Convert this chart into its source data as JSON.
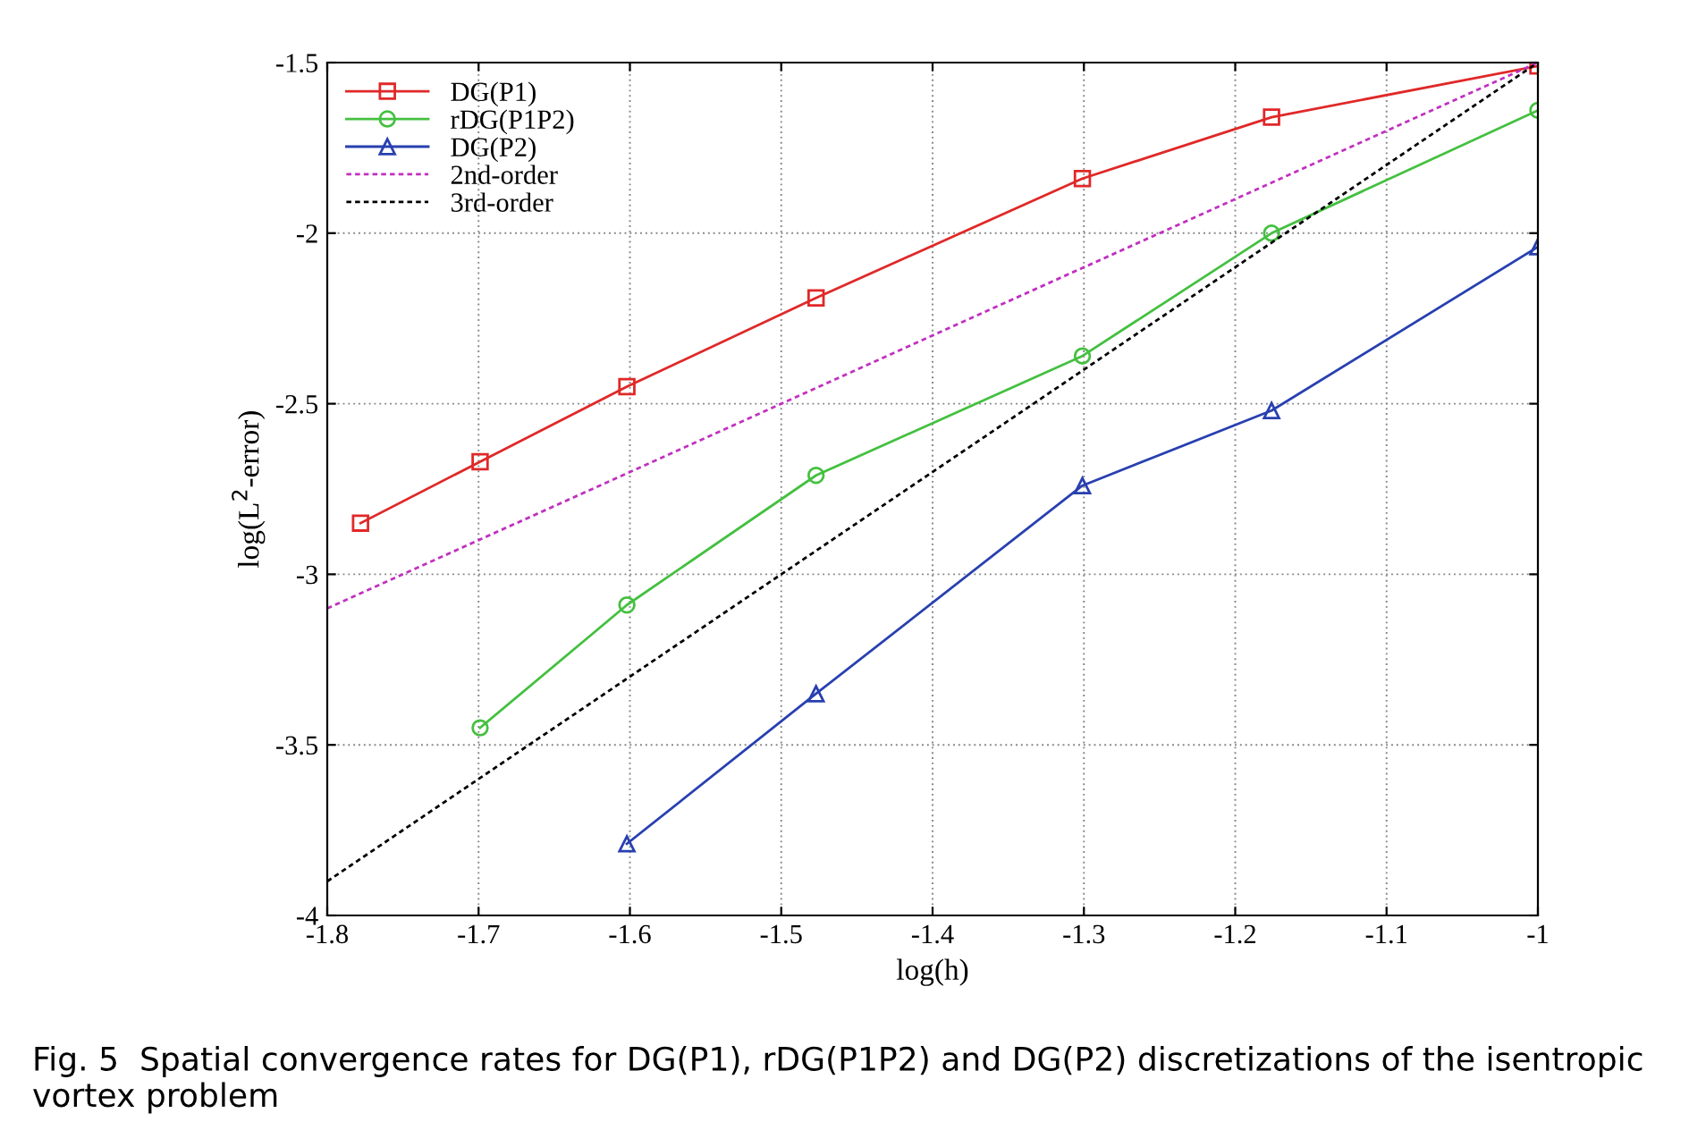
{
  "chart_data": {
    "type": "line",
    "xlabel": "log(h)",
    "ylabel": "log(L$^{2}$-error)",
    "xlim": [
      -1.8,
      -1
    ],
    "ylim": [
      -4,
      -1.5
    ],
    "xticks": [
      -1.8,
      -1.7,
      -1.6,
      -1.5,
      -1.4,
      -1.3,
      -1.2,
      -1.1,
      -1
    ],
    "yticks": [
      -4,
      -3.5,
      -3,
      -2.5,
      -2,
      -1.5
    ],
    "grid": true,
    "legend": "top left",
    "line_style": "solid",
    "series": [
      {
        "name": "DG(P1)",
        "color": "#e02828",
        "marker": "square",
        "x": [
          -1.778,
          -1.699,
          -1.602,
          -1.477,
          -1.301,
          -1.176,
          -1.0
        ],
        "values": [
          -2.85,
          -2.67,
          -2.45,
          -2.19,
          -1.84,
          -1.66,
          -1.51
        ]
      },
      {
        "name": "rDG(P1P2)",
        "color": "#44c040",
        "marker": "circle",
        "x": [
          -1.699,
          -1.602,
          -1.477,
          -1.301,
          -1.176,
          -1.0
        ],
        "values": [
          -3.45,
          -3.09,
          -2.71,
          -2.36,
          -2.0,
          -1.64
        ]
      },
      {
        "name": "DG(P2)",
        "color": "#2840b0",
        "marker": "triangle",
        "x": [
          -1.602,
          -1.477,
          -1.301,
          -1.176,
          -1.0
        ],
        "values": [
          -3.79,
          -3.35,
          -2.74,
          -2.52,
          -2.04
        ]
      },
      {
        "name": "2nd-order",
        "color": "#c030c0",
        "marker": "none",
        "line_style": "dashed",
        "x": [
          -1.8,
          -1.0
        ],
        "values": [
          -3.1,
          -1.5
        ]
      },
      {
        "name": "3rd-order",
        "color": "#000000",
        "marker": "none",
        "line_style": "dashed",
        "x": [
          -1.8,
          -1.0
        ],
        "values": [
          -3.9,
          -1.5
        ]
      }
    ],
    "annotations": [
      "Fig. 5  Spatial convergence rates for DG(P1), rDG(P1P2) and DG(P2) discretizations of the isentropic vortex problem"
    ]
  }
}
